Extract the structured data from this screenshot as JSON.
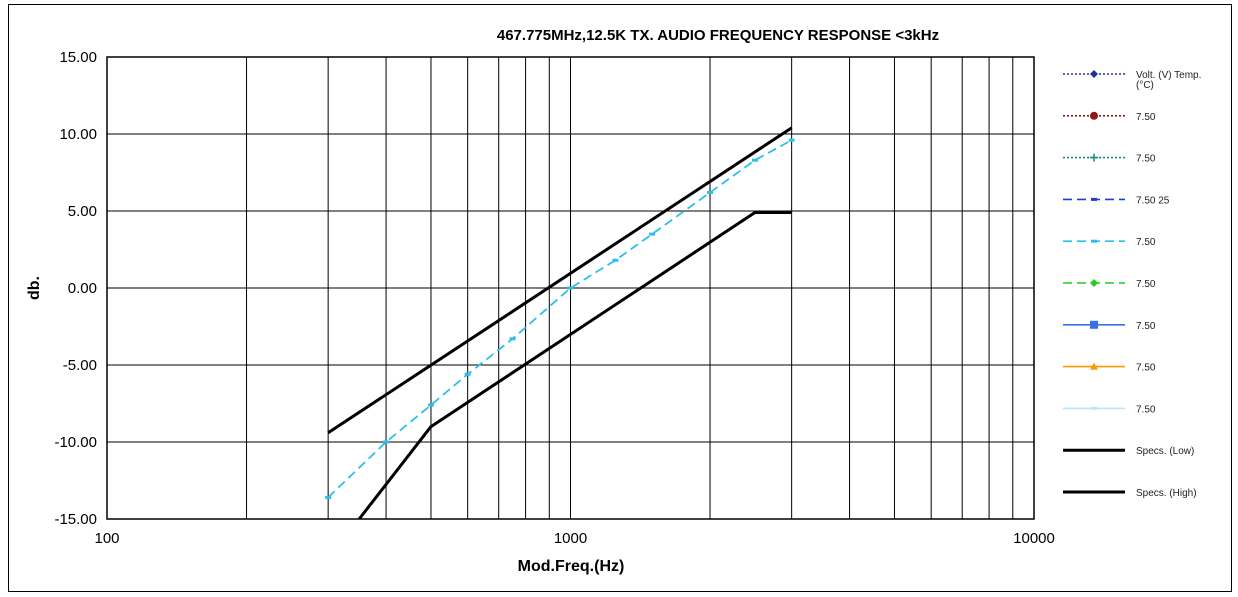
{
  "chart_data": {
    "type": "line",
    "title": "467.775MHz,12.5K TX. AUDIO FREQUENCY RESPONSE <3kHz",
    "xlabel": "Mod.Freq.(Hz)",
    "ylabel": "db.",
    "xscale": "log",
    "xlim": [
      100,
      10000
    ],
    "ylim": [
      -15,
      15
    ],
    "x_ticks": [
      "100",
      "1000",
      "10000"
    ],
    "y_ticks": [
      "15.00",
      "10.00",
      "5.00",
      "0.00",
      "-5.00",
      "-10.00",
      "-15.00"
    ],
    "grid": true,
    "legend_position": "right",
    "series": [
      {
        "name": "Volt. (V) Temp. (°C)",
        "color": "#1f2f9c",
        "style": "dotted",
        "marker": "diamond",
        "x": [],
        "y": []
      },
      {
        "name": "7.50",
        "color": "#8b1a1a",
        "style": "dotted",
        "marker": "circle",
        "x": [],
        "y": []
      },
      {
        "name": "7.50",
        "color": "#1a8a7a",
        "style": "dotted",
        "marker": "plus",
        "x": [],
        "y": []
      },
      {
        "name": "7.50 25",
        "color": "#1e3fd6",
        "style": "dashed",
        "marker": "dash",
        "x": [],
        "y": []
      },
      {
        "name": "7.50",
        "color": "#2bc0e8",
        "style": "dashed",
        "marker": "dash",
        "x": [
          300,
          400,
          500,
          600,
          750,
          1000,
          1250,
          1500,
          2000,
          2500,
          3000
        ],
        "y": [
          -13.6,
          -10.0,
          -7.6,
          -5.6,
          -3.3,
          0.0,
          1.8,
          3.5,
          6.2,
          8.3,
          9.6
        ]
      },
      {
        "name": "7.50",
        "color": "#22cc22",
        "style": "dashed",
        "marker": "diamond",
        "x": [],
        "y": []
      },
      {
        "name": "7.50",
        "color": "#3a6fe8",
        "style": "solid",
        "marker": "square",
        "x": [],
        "y": []
      },
      {
        "name": "7.50",
        "color": "#ff9900",
        "style": "solid",
        "marker": "triangle",
        "x": [],
        "y": []
      },
      {
        "name": "7.50",
        "color": "#b8e8f8",
        "style": "solid",
        "marker": "dash",
        "x": [],
        "y": []
      },
      {
        "name": "Specs. (Low)",
        "color": "#000000",
        "style": "solid",
        "marker": "none",
        "x": [
          350,
          500,
          2500,
          3000
        ],
        "y": [
          -15,
          -9,
          4.9,
          4.9
        ]
      },
      {
        "name": "Specs. (High)",
        "color": "#000000",
        "style": "solid",
        "marker": "none",
        "x": [
          300,
          3000
        ],
        "y": [
          -9.4,
          10.4
        ]
      }
    ]
  }
}
